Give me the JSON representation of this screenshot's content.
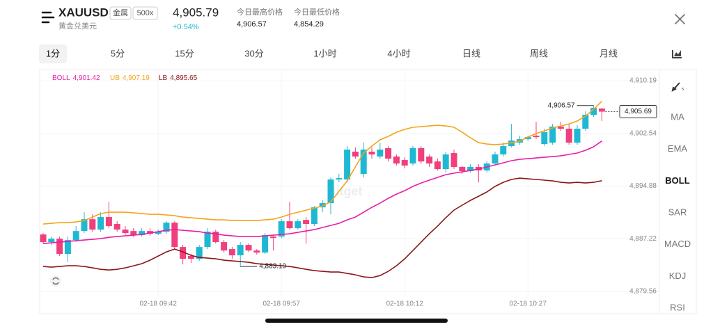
{
  "header": {
    "title": "XAUUSD",
    "tags": [
      "金属",
      "500x"
    ],
    "subtitle": "黄金兑美元",
    "price": "4,905.79",
    "change": "+0.54%",
    "stats": [
      {
        "label": "今日最高价格",
        "value": "4,906.57"
      },
      {
        "label": "今日最低价格",
        "value": "4,854.29"
      }
    ]
  },
  "tabs": [
    "1分",
    "5分",
    "15分",
    "30分",
    "1小时",
    "4小时",
    "日线",
    "周线",
    "月线"
  ],
  "active_tab": 0,
  "indicators": [
    "MA",
    "EMA",
    "BOLL",
    "SAR",
    "MACD",
    "KDJ",
    "RSI"
  ],
  "active_indicator": 2,
  "chart_data": {
    "type": "candlestick",
    "watermark": "Bitget",
    "up_color": "#1fb8d3",
    "down_color": "#f03f7d",
    "ylim": [
      4876.53,
      4911.5
    ],
    "yticks": [
      {
        "value": 4910.19,
        "label": "4,910.19"
      },
      {
        "value": 4902.54,
        "label": "4,902.54"
      },
      {
        "value": 4894.88,
        "label": "4,894.88"
      },
      {
        "value": 4887.22,
        "label": "4,887.22"
      },
      {
        "value": 4879.56,
        "label": "4,879.56"
      }
    ],
    "grid": true,
    "categories": [
      null,
      null,
      null,
      null,
      null,
      null,
      null,
      null,
      null,
      null,
      null,
      null,
      null,
      null,
      "02-18 09:42",
      null,
      null,
      null,
      null,
      null,
      null,
      null,
      null,
      null,
      null,
      null,
      null,
      null,
      null,
      "02-18 09:57",
      null,
      null,
      null,
      null,
      null,
      null,
      null,
      null,
      null,
      null,
      null,
      null,
      null,
      null,
      "02-18 10:12",
      null,
      null,
      null,
      null,
      null,
      null,
      null,
      null,
      null,
      null,
      null,
      null,
      null,
      null,
      "02-18 10:27",
      null,
      null,
      null,
      null,
      null,
      null,
      null,
      null,
      null
    ],
    "candles": [
      [
        4887.84,
        4888.04,
        4886.52,
        4886.73
      ],
      [
        4886.73,
        4887.54,
        4886.32,
        4887.23
      ],
      [
        4887.23,
        4887.54,
        4884.71,
        4885.01
      ],
      [
        4885.01,
        4887.54,
        4883.8,
        4887.03
      ],
      [
        4887.03,
        4889.05,
        4886.73,
        4888.34
      ],
      [
        4888.34,
        4891.07,
        4888.04,
        4890.06
      ],
      [
        4890.06,
        4890.77,
        4888.24,
        4888.55
      ],
      [
        4888.55,
        4891.07,
        4888.24,
        4890.37
      ],
      [
        4890.37,
        4892.59,
        4888.75,
        4889.05
      ],
      [
        4889.36,
        4889.76,
        4888.24,
        4888.55
      ],
      [
        4888.55,
        4889.05,
        4887.74,
        4888.04
      ],
      [
        4888.34,
        4888.75,
        4887.43,
        4887.74
      ],
      [
        4887.74,
        4888.75,
        4887.54,
        4888.34
      ],
      [
        4888.34,
        4888.75,
        4887.64,
        4887.94
      ],
      [
        4887.94,
        4888.55,
        4887.74,
        4888.24
      ],
      [
        4888.24,
        4889.76,
        4887.94,
        4889.56
      ],
      [
        4889.56,
        4889.76,
        4885.72,
        4886.02
      ],
      [
        4886.02,
        4886.32,
        4883.49,
        4884.3
      ],
      [
        4884.71,
        4885.01,
        4883.69,
        4884.3
      ],
      [
        4884.3,
        4886.32,
        4884.0,
        4886.02
      ],
      [
        4886.02,
        4888.75,
        4885.72,
        4888.24
      ],
      [
        4888.24,
        4888.55,
        4886.52,
        4886.73
      ],
      [
        4886.73,
        4887.03,
        4885.21,
        4885.51
      ],
      [
        4885.72,
        4886.02,
        4884.3,
        4884.81
      ],
      [
        4884.81,
        4886.73,
        4883.19,
        4886.32
      ],
      [
        4886.32,
        4886.52,
        4885.31,
        4885.51
      ],
      [
        4885.51,
        4885.72,
        4884.91,
        4885.21
      ],
      [
        4885.21,
        4888.04,
        4885.01,
        4887.74
      ],
      [
        4887.54,
        4887.74,
        4885.51,
        4887.33
      ],
      [
        4887.54,
        4890.06,
        4887.33,
        4889.76
      ],
      [
        4889.76,
        4892.59,
        4888.55,
        4888.75
      ],
      [
        4888.75,
        4890.06,
        4888.55,
        4889.76
      ],
      [
        4889.96,
        4890.37,
        4886.52,
        4889.36
      ],
      [
        4889.36,
        4891.98,
        4889.05,
        4891.78
      ],
      [
        4891.78,
        4892.79,
        4891.07,
        4892.39
      ],
      [
        4892.39,
        4896.13,
        4890.77,
        4895.83
      ],
      [
        4895.83,
        4896.63,
        4895.42,
        4896.03
      ],
      [
        4895.83,
        4900.68,
        4895.42,
        4900.17
      ],
      [
        4899.87,
        4900.48,
        4898.86,
        4899.16
      ],
      [
        4896.63,
        4901.18,
        4896.13,
        4900.17
      ],
      [
        4899.87,
        4900.48,
        4898.86,
        4899.47
      ],
      [
        4899.16,
        4901.18,
        4898.86,
        4900.17
      ],
      [
        4900.38,
        4900.68,
        4898.45,
        4898.86
      ],
      [
        4899.16,
        4899.47,
        4897.85,
        4898.15
      ],
      [
        4898.66,
        4899.06,
        4897.44,
        4897.85
      ],
      [
        4898.15,
        4900.68,
        4897.85,
        4900.38
      ],
      [
        4900.38,
        4900.68,
        4898.15,
        4898.45
      ],
      [
        4899.16,
        4899.47,
        4897.65,
        4898.15
      ],
      [
        4898.45,
        4898.86,
        4897.14,
        4897.34
      ],
      [
        4897.34,
        4899.87,
        4896.84,
        4899.47
      ],
      [
        4899.67,
        4900.17,
        4897.34,
        4897.65
      ],
      [
        4897.65,
        4897.85,
        4896.63,
        4897.04
      ],
      [
        4897.04,
        4898.05,
        4896.84,
        4897.65
      ],
      [
        4897.65,
        4898.05,
        4895.42,
        4897.14
      ],
      [
        4897.14,
        4898.45,
        4896.84,
        4898.15
      ],
      [
        4898.15,
        4899.87,
        4897.85,
        4899.47
      ],
      [
        4899.47,
        4901.18,
        4899.16,
        4900.68
      ],
      [
        4900.68,
        4903.91,
        4900.48,
        4901.49
      ],
      [
        4901.18,
        4902.2,
        4900.88,
        4901.69
      ],
      [
        4901.69,
        4902.2,
        4901.39,
        4901.99
      ],
      [
        4902.2,
        4904.22,
        4901.69,
        4901.99
      ],
      [
        4900.98,
        4903.21,
        4900.68,
        4902.7
      ],
      [
        4901.18,
        4903.91,
        4900.88,
        4903.51
      ],
      [
        4903.51,
        4904.22,
        4902.9,
        4903.21
      ],
      [
        4903.21,
        4903.91,
        4900.88,
        4901.18
      ],
      [
        4901.18,
        4903.71,
        4900.88,
        4903.21
      ],
      [
        4903.21,
        4905.73,
        4902.9,
        4905.23
      ],
      [
        4905.23,
        4906.57,
        4904.93,
        4906.24
      ],
      [
        4906.14,
        4906.24,
        4904.32,
        4905.69
      ]
    ],
    "series": [
      {
        "name": "BOLL",
        "color": "#e61ea8",
        "value_label": "4,901.42",
        "values": [
          4886.52,
          4886.63,
          4886.73,
          4886.83,
          4886.93,
          4887.03,
          4887.13,
          4887.23,
          4887.43,
          4887.54,
          4887.64,
          4887.74,
          4887.84,
          4888.04,
          4888.24,
          4888.45,
          4888.55,
          4888.45,
          4888.34,
          4888.24,
          4888.04,
          4887.94,
          4887.74,
          4887.64,
          4887.54,
          4887.54,
          4887.54,
          4887.64,
          4887.74,
          4887.84,
          4887.94,
          4888.14,
          4888.34,
          4888.55,
          4888.85,
          4889.15,
          4889.46,
          4889.96,
          4890.37,
          4891.07,
          4891.78,
          4892.39,
          4893.1,
          4893.7,
          4894.21,
          4894.82,
          4895.32,
          4895.73,
          4896.13,
          4896.53,
          4896.74,
          4896.94,
          4897.14,
          4897.34,
          4897.65,
          4897.95,
          4898.25,
          4898.56,
          4898.76,
          4898.86,
          4898.96,
          4899.06,
          4899.16,
          4899.26,
          4899.47,
          4899.67,
          4900.07,
          4900.58,
          4901.42
        ]
      },
      {
        "name": "UB",
        "color": "#f5a31a",
        "value_label": "4,907.19",
        "values": [
          4889.36,
          4889.46,
          4889.56,
          4889.56,
          4889.66,
          4889.86,
          4890.37,
          4890.87,
          4891.07,
          4891.07,
          4891.07,
          4890.97,
          4890.87,
          4890.77,
          4890.77,
          4890.67,
          4890.57,
          4890.37,
          4890.27,
          4890.16,
          4890.06,
          4889.96,
          4889.96,
          4889.86,
          4889.86,
          4889.86,
          4889.86,
          4889.96,
          4890.06,
          4890.37,
          4890.77,
          4891.07,
          4891.38,
          4891.68,
          4891.98,
          4892.59,
          4894.11,
          4895.62,
          4897.65,
          4899.67,
          4900.68,
          4901.59,
          4902.09,
          4902.7,
          4903.11,
          4903.41,
          4903.51,
          4903.61,
          4903.71,
          4903.61,
          4903.41,
          4902.7,
          4901.89,
          4901.18,
          4900.98,
          4900.88,
          4900.98,
          4901.18,
          4901.39,
          4901.99,
          4902.5,
          4902.9,
          4903.31,
          4903.61,
          4903.91,
          4904.32,
          4905.03,
          4906.04,
          4907.19
        ]
      },
      {
        "name": "LB",
        "color": "#8c1616",
        "value_label": "4,895.65",
        "values": [
          4883.19,
          4883.09,
          4883.19,
          4883.29,
          4883.29,
          4883.19,
          4882.99,
          4882.78,
          4882.68,
          4882.78,
          4882.99,
          4883.29,
          4883.59,
          4884.1,
          4884.71,
          4885.31,
          4885.72,
          4885.31,
          4884.81,
          4884.5,
          4884.4,
          4884.3,
          4884.1,
          4884.0,
          4883.9,
          4883.8,
          4883.59,
          4883.49,
          4883.39,
          4883.29,
          4883.19,
          4882.99,
          4882.78,
          4882.58,
          4882.48,
          4882.38,
          4882.38,
          4882.18,
          4881.98,
          4881.67,
          4881.57,
          4881.87,
          4882.48,
          4883.29,
          4884.3,
          4885.51,
          4886.73,
          4887.94,
          4889.05,
          4890.27,
          4891.38,
          4892.09,
          4892.79,
          4893.4,
          4894.01,
          4894.82,
          4895.42,
          4895.83,
          4896.03,
          4895.93,
          4895.83,
          4895.73,
          4895.62,
          4895.42,
          4895.32,
          4895.42,
          4895.32,
          4895.42,
          4895.65
        ]
      }
    ],
    "annotations": [
      {
        "value": 4906.57,
        "label": "4,906.57"
      },
      {
        "value": 4883.19,
        "label": "4,883.19"
      }
    ],
    "last_price": {
      "value": 4905.69,
      "label": "4,905.69"
    }
  }
}
